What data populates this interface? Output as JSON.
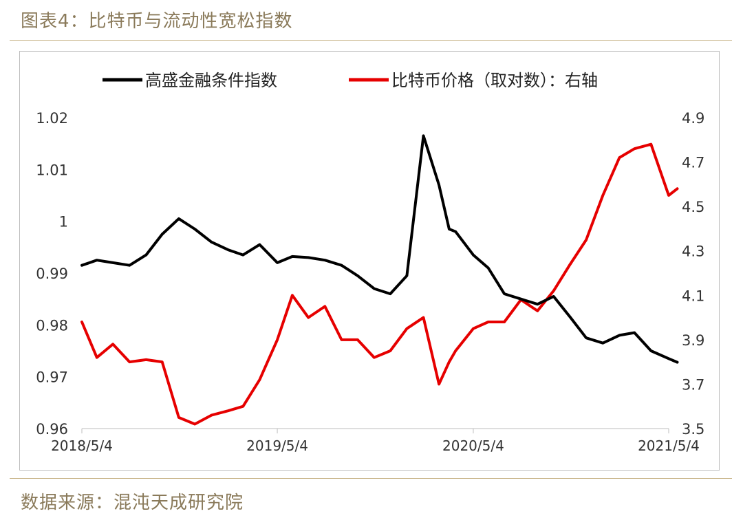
{
  "figure_title": "图表4：比特币与流动性宽松指数",
  "source": "数据来源：混沌天成研究院",
  "chart_data": {
    "type": "line",
    "x_ticks": [
      "2018/5/4",
      "2019/5/4",
      "2020/5/4",
      "2021/5/4"
    ],
    "y_left": {
      "ticks": [
        "0.96",
        "0.97",
        "0.98",
        "0.99",
        "1",
        "1.01",
        "1.02"
      ],
      "range": [
        0.96,
        1.02
      ]
    },
    "y_right": {
      "ticks": [
        "3.5",
        "3.7",
        "3.9",
        "4.1",
        "4.3",
        "4.5",
        "4.7",
        "4.9"
      ],
      "range": [
        3.5,
        4.9
      ]
    },
    "legend_position": "top",
    "grid": false,
    "colors": {
      "black_series": "#000000",
      "red_series": "#e60000"
    },
    "series": [
      {
        "name": "高盛金融条件指数",
        "axis": "left",
        "x": [
          "2018/5/4",
          "2018/6/1",
          "2018/7/1",
          "2018/8/1",
          "2018/9/1",
          "2018/10/1",
          "2018/11/1",
          "2018/12/1",
          "2019/1/1",
          "2019/2/1",
          "2019/3/1",
          "2019/4/1",
          "2019/5/4",
          "2019/6/1",
          "2019/7/1",
          "2019/8/1",
          "2019/9/1",
          "2019/10/1",
          "2019/11/1",
          "2019/12/1",
          "2020/1/1",
          "2020/2/1",
          "2020/3/1",
          "2020/3/20",
          "2020/4/1",
          "2020/5/4",
          "2020/6/1",
          "2020/7/1",
          "2020/8/1",
          "2020/9/1",
          "2020/10/1",
          "2020/11/1",
          "2020/12/1",
          "2021/1/1",
          "2021/2/1",
          "2021/3/1",
          "2021/4/1",
          "2021/5/4",
          "2021/5/20"
        ],
        "values": [
          0.9915,
          0.9925,
          0.992,
          0.9915,
          0.9935,
          0.9975,
          1.0005,
          0.9985,
          0.996,
          0.9945,
          0.9935,
          0.9955,
          0.992,
          0.9932,
          0.993,
          0.9925,
          0.9915,
          0.9895,
          0.987,
          0.986,
          0.9895,
          1.0165,
          1.007,
          0.9985,
          0.998,
          0.9935,
          0.991,
          0.986,
          0.985,
          0.984,
          0.9855,
          0.9815,
          0.9775,
          0.9765,
          0.978,
          0.9785,
          0.975,
          0.9735,
          0.9728
        ]
      },
      {
        "name": "比特币价格（取对数）：右轴",
        "axis": "right",
        "x": [
          "2018/5/4",
          "2018/6/1",
          "2018/7/1",
          "2018/8/1",
          "2018/9/1",
          "2018/10/1",
          "2018/11/1",
          "2018/12/1",
          "2019/1/1",
          "2019/2/1",
          "2019/3/1",
          "2019/4/1",
          "2019/5/4",
          "2019/6/1",
          "2019/7/1",
          "2019/8/1",
          "2019/9/1",
          "2019/10/1",
          "2019/11/1",
          "2019/12/1",
          "2020/1/1",
          "2020/2/1",
          "2020/3/1",
          "2020/3/20",
          "2020/4/1",
          "2020/5/4",
          "2020/6/1",
          "2020/7/1",
          "2020/8/1",
          "2020/9/1",
          "2020/10/1",
          "2020/11/1",
          "2020/12/1",
          "2021/1/1",
          "2021/2/1",
          "2021/3/1",
          "2021/4/1",
          "2021/5/4",
          "2021/5/20"
        ],
        "values": [
          3.98,
          3.82,
          3.88,
          3.8,
          3.81,
          3.8,
          3.55,
          3.52,
          3.56,
          3.58,
          3.6,
          3.72,
          3.9,
          4.1,
          4.0,
          4.05,
          3.9,
          3.9,
          3.82,
          3.85,
          3.95,
          4.0,
          3.7,
          3.8,
          3.85,
          3.95,
          3.98,
          3.98,
          4.08,
          4.03,
          4.12,
          4.24,
          4.35,
          4.55,
          4.72,
          4.76,
          4.78,
          4.55,
          4.58
        ]
      }
    ]
  }
}
